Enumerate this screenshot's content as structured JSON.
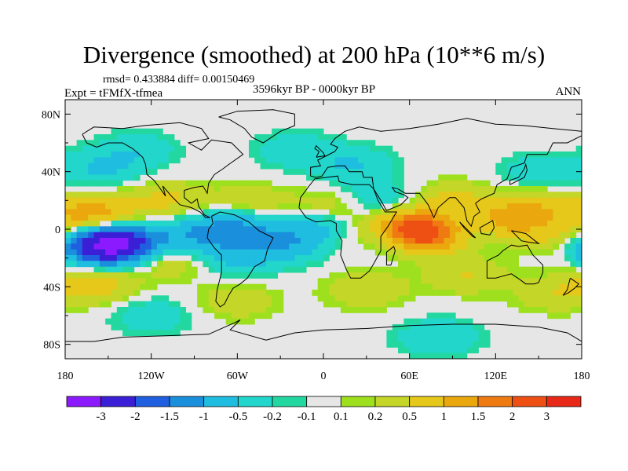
{
  "title": "Divergence (smoothed) at 200 hPa (10**6 m/s)",
  "stats": {
    "rmsd_text": "rmsd= 0.433884 diff= 0.00150469",
    "experiment": "Expt = tFMfX-tfmea",
    "period": "3596kyr BP - 0000kyr BP",
    "season": "ANN"
  },
  "chart_data": {
    "type": "heatmap",
    "title": "Divergence (smoothed) at 200 hPa (10**6 m/s)",
    "xlabel": "",
    "ylabel": "",
    "x_range": [
      -180,
      180
    ],
    "y_range": [
      -90,
      90
    ],
    "x_ticks": [
      {
        "value": -180,
        "label": "180"
      },
      {
        "value": -120,
        "label": "120W"
      },
      {
        "value": -60,
        "label": "60W"
      },
      {
        "value": 0,
        "label": "0"
      },
      {
        "value": 60,
        "label": "60E"
      },
      {
        "value": 120,
        "label": "120E"
      },
      {
        "value": 180,
        "label": "180"
      }
    ],
    "y_ticks": [
      {
        "value": 80,
        "label": "80N"
      },
      {
        "value": 40,
        "label": "40N"
      },
      {
        "value": 0,
        "label": "0"
      },
      {
        "value": -40,
        "label": "40S"
      },
      {
        "value": -80,
        "label": "80S"
      }
    ],
    "colorbar": {
      "colors": [
        "#8c1aff",
        "#3b1fd6",
        "#1f5fe0",
        "#1a8fdc",
        "#1fbde0",
        "#22d6cc",
        "#22d8a0",
        "#e6e6e6",
        "#9ee01e",
        "#c4d628",
        "#e6c81a",
        "#eba80e",
        "#f07a12",
        "#ee5014",
        "#e82818"
      ],
      "labels": [
        "-3",
        "-2",
        "-1.5",
        "-1",
        "-0.5",
        "-0.2",
        "-0.1",
        "0.1",
        "0.2",
        "0.5",
        "1",
        "1.5",
        "2",
        "3"
      ],
      "levels": [
        -3,
        -2,
        -1.5,
        -1,
        -0.5,
        -0.2,
        -0.1,
        0.1,
        0.2,
        0.5,
        1,
        1.5,
        2,
        3
      ]
    },
    "field_features": [
      {
        "lon": -153,
        "lat": -12,
        "value": -2.6
      },
      {
        "lon": -140,
        "lat": -8,
        "value": -1.4
      },
      {
        "lon": -160,
        "lat": 10,
        "value": 1.3
      },
      {
        "lon": -110,
        "lat": 20,
        "value": 0.6
      },
      {
        "lon": -105,
        "lat": -22,
        "value": 0.5
      },
      {
        "lon": -90,
        "lat": -5,
        "value": -0.8
      },
      {
        "lon": -60,
        "lat": 2,
        "value": -1.0
      },
      {
        "lon": -62,
        "lat": -20,
        "value": -0.6
      },
      {
        "lon": -50,
        "lat": 18,
        "value": 0.5
      },
      {
        "lon": -25,
        "lat": -10,
        "value": -0.8
      },
      {
        "lon": 0,
        "lat": 2,
        "value": -0.7
      },
      {
        "lon": 10,
        "lat": 15,
        "value": 0.6
      },
      {
        "lon": 25,
        "lat": -5,
        "value": 0.6
      },
      {
        "lon": 35,
        "lat": 20,
        "value": -0.6
      },
      {
        "lon": 45,
        "lat": -5,
        "value": -1.0
      },
      {
        "lon": 62,
        "lat": 0,
        "value": 2.3
      },
      {
        "lon": 75,
        "lat": -5,
        "value": 1.3
      },
      {
        "lon": 90,
        "lat": 20,
        "value": 0.6
      },
      {
        "lon": 100,
        "lat": 0,
        "value": -0.7
      },
      {
        "lon": 125,
        "lat": 5,
        "value": 1.2
      },
      {
        "lon": 150,
        "lat": 15,
        "value": 0.7
      },
      {
        "lon": 165,
        "lat": -5,
        "value": 0.5
      },
      {
        "lon": -155,
        "lat": 42,
        "value": -0.5
      },
      {
        "lon": -130,
        "lat": 55,
        "value": -0.4
      },
      {
        "lon": -20,
        "lat": 55,
        "value": -0.4
      },
      {
        "lon": 20,
        "lat": 45,
        "value": -0.5
      },
      {
        "lon": 150,
        "lat": 40,
        "value": -0.4
      },
      {
        "lon": -160,
        "lat": -38,
        "value": 0.8
      },
      {
        "lon": -60,
        "lat": -50,
        "value": 0.4
      },
      {
        "lon": 30,
        "lat": -42,
        "value": 0.5
      },
      {
        "lon": 100,
        "lat": -32,
        "value": 0.5
      },
      {
        "lon": 160,
        "lat": -45,
        "value": 0.4
      },
      {
        "lon": -120,
        "lat": -60,
        "value": -0.4
      },
      {
        "lon": 80,
        "lat": -75,
        "value": -0.5
      }
    ]
  }
}
